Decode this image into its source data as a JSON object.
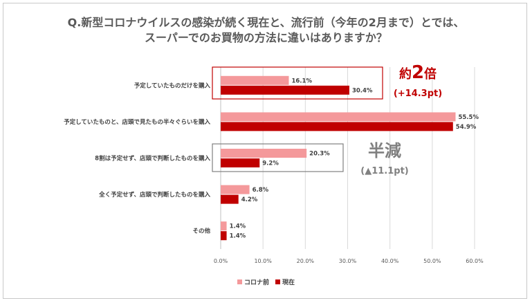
{
  "title_line1": "Q.新型コロナウイルスの感染が続く現在と、流行前（今年の2月まで）とでは、",
  "title_line2": "スーパーでのお買物の方法に違いはありますか？",
  "chart_data": {
    "type": "bar",
    "orientation": "horizontal",
    "categories": [
      "予定していたものだけを購入",
      "予定していたものと、店頭で見たもの半々ぐらいを購入",
      "8割は予定せず、店頭で判断したものを購入",
      "全く予定せず、店頭で判断したものを購入",
      "その他"
    ],
    "series": [
      {
        "name": "コロナ前",
        "color": "#f4999b",
        "values": [
          16.1,
          55.5,
          20.3,
          6.8,
          1.4
        ],
        "labels": [
          "16.1%",
          "55.5%",
          "20.3%",
          "6.8%",
          "1.4%"
        ]
      },
      {
        "name": "現在",
        "color": "#c00000",
        "values": [
          30.4,
          54.9,
          9.2,
          4.2,
          1.4
        ],
        "labels": [
          "30.4%",
          "54.9%",
          "9.2%",
          "4.2%",
          "1.4%"
        ]
      }
    ],
    "xlim": [
      0,
      60
    ],
    "xticks": [
      "0.0%",
      "10.0%",
      "20.0%",
      "30.0%",
      "40.0%",
      "50.0%",
      "60.0%"
    ],
    "grid": true,
    "legend": "bottom"
  },
  "annotations": {
    "double": {
      "prefix": "約",
      "number": "2",
      "suffix": "倍",
      "sub": "(+14.3pt)",
      "color": "#c00000"
    },
    "half": {
      "text": "半減",
      "sub": "(▲11.1pt)",
      "color": "#808080"
    }
  }
}
